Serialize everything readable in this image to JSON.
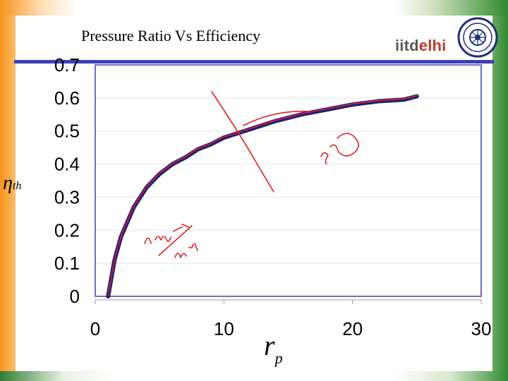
{
  "slide": {
    "title": "Pressure Ratio Vs Efficiency",
    "logo": {
      "part1": "iitd",
      "part2": "elhi"
    }
  },
  "labels": {
    "y_symbol": "η",
    "y_subscript": "th",
    "x_symbol": "r",
    "x_subscript": "p"
  },
  "colors": {
    "curve": "#1f1f7a",
    "annotation": "#e02020",
    "plot_border": "#3b3fb8",
    "grid": "#999999"
  },
  "chart_data": {
    "type": "line",
    "title": "Pressure Ratio Vs Efficiency",
    "xlabel": "r_p",
    "ylabel": "η_th",
    "xlim": [
      0,
      30
    ],
    "ylim": [
      0,
      0.7
    ],
    "x_ticks": [
      "0",
      "10",
      "20",
      "30"
    ],
    "y_ticks": [
      "0",
      "0.1",
      "0.2",
      "0.3",
      "0.4",
      "0.5",
      "0.6",
      "0.7"
    ],
    "grid": "horizontal",
    "series": [
      {
        "x": [
          1,
          1.5,
          2,
          3,
          4,
          5,
          6,
          7,
          8,
          9,
          10,
          12,
          14,
          16,
          18,
          20,
          22,
          24,
          25
        ],
        "y": [
          0,
          0.11,
          0.18,
          0.27,
          0.33,
          0.37,
          0.4,
          0.42,
          0.445,
          0.46,
          0.48,
          0.505,
          0.53,
          0.55,
          0.565,
          0.58,
          0.59,
          0.595,
          0.605
        ]
      }
    ],
    "annotations": [
      "∂η_th / ∂r_p",
      "η_th"
    ]
  }
}
